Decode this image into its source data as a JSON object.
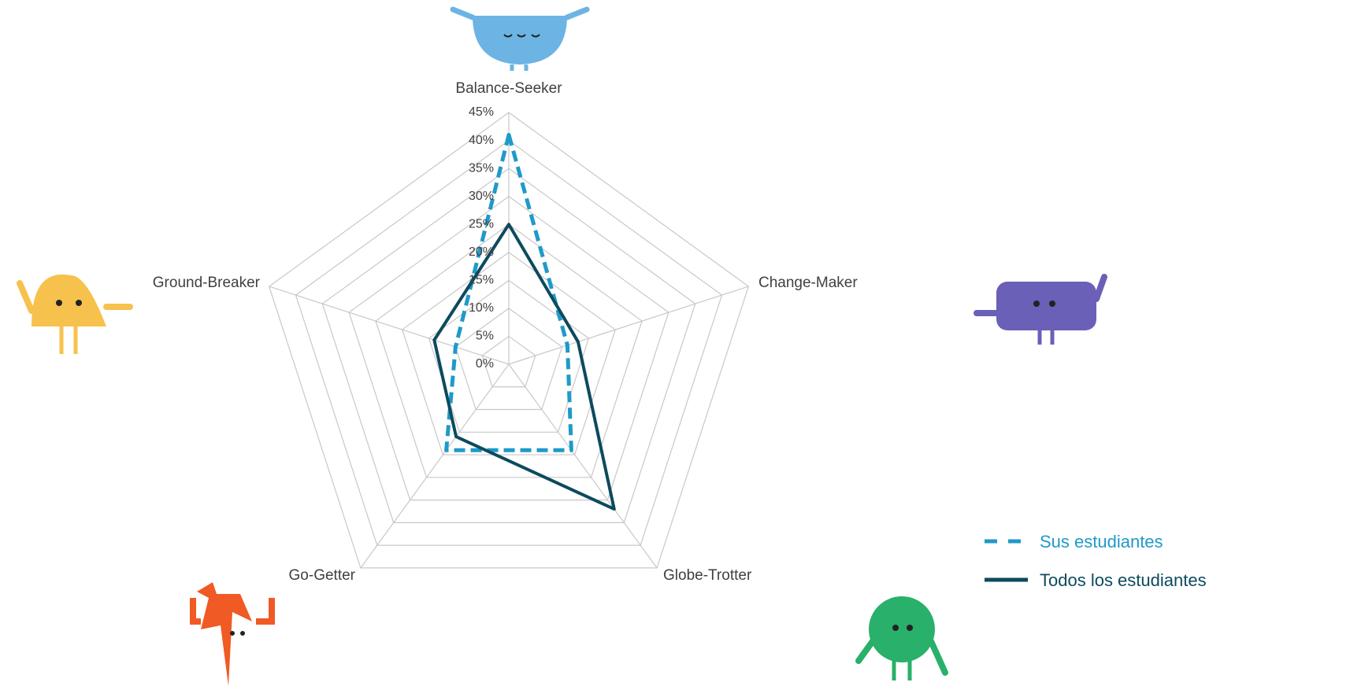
{
  "chart_data": {
    "type": "radar",
    "categories": [
      "Balance-Seeker",
      "Change-Maker",
      "Globe-Trotter",
      "Go-Getter",
      "Ground-Breaker"
    ],
    "series": [
      {
        "name": "Sus estudiantes",
        "color": "#1f9ac9",
        "dash": true,
        "values": [
          41,
          11,
          19,
          19,
          10
        ]
      },
      {
        "name": "Todos los estudiantes",
        "color": "#0d4a5e",
        "dash": false,
        "values": [
          25,
          13,
          32,
          16,
          14
        ]
      }
    ],
    "ylim": [
      0,
      45
    ],
    "yticks": [
      {
        "value": 0,
        "label": "0%"
      },
      {
        "value": 5,
        "label": "5%"
      },
      {
        "value": 10,
        "label": "10%"
      },
      {
        "value": 15,
        "label": "15%"
      },
      {
        "value": 20,
        "label": "20%"
      },
      {
        "value": 25,
        "label": "25%"
      },
      {
        "value": 30,
        "label": "30%"
      },
      {
        "value": 35,
        "label": "35%"
      },
      {
        "value": 40,
        "label": "40%"
      },
      {
        "value": 45,
        "label": "45%"
      }
    ],
    "grid": true
  }
}
